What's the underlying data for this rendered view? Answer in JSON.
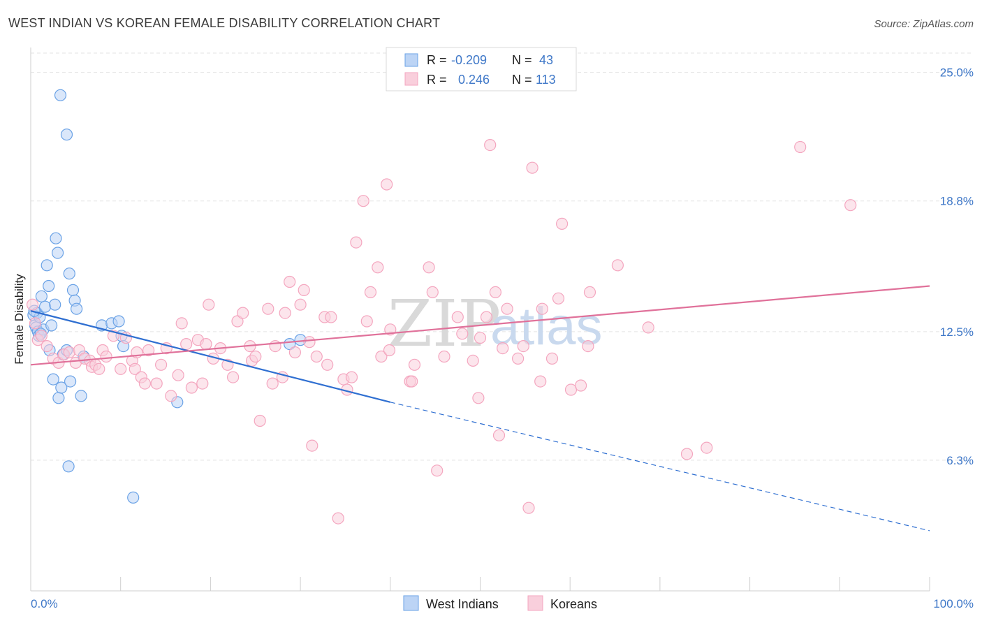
{
  "chart_data": {
    "type": "scatter",
    "title": "WEST INDIAN VS KOREAN FEMALE DISABILITY CORRELATION CHART",
    "source": "Source: ZipAtlas.com",
    "xlabel": "",
    "ylabel": "Female Disability",
    "xlim": [
      0,
      100
    ],
    "ylim": [
      0,
      26.2
    ],
    "x_tick_labels": {
      "left": "0.0%",
      "right": "100.0%"
    },
    "y_ticks": [
      {
        "value": 25.0,
        "label": "25.0%"
      },
      {
        "value": 18.8,
        "label": "18.8%"
      },
      {
        "value": 12.5,
        "label": "12.5%"
      },
      {
        "value": 6.3,
        "label": "6.3%"
      }
    ],
    "watermark": {
      "zip": "ZIP",
      "atlas": "atlas"
    },
    "legend": {
      "r_label": "R =",
      "n_label": "N =",
      "entries": [
        {
          "r": "-0.209",
          "n": "43"
        },
        {
          "r": "0.246",
          "n": "113"
        }
      ]
    },
    "series": [
      {
        "name": "West Indians",
        "color": "#6aa2e6",
        "line_color": "#2f6fd1",
        "trend": {
          "x0": 0,
          "y0": 13.5,
          "x1": 40,
          "y1": 9.1,
          "x_dash_end": 100,
          "y_dash_end": 2.9
        },
        "points": [
          [
            3.3,
            23.9
          ],
          [
            4.0,
            22.0
          ],
          [
            0.3,
            13.3
          ],
          [
            0.5,
            12.8
          ],
          [
            0.6,
            12.7
          ],
          [
            0.7,
            13.4
          ],
          [
            0.8,
            12.5
          ],
          [
            0.9,
            12.3
          ],
          [
            1.0,
            13.2
          ],
          [
            1.2,
            14.2
          ],
          [
            1.4,
            12.6
          ],
          [
            1.6,
            13.7
          ],
          [
            1.8,
            15.7
          ],
          [
            2.0,
            14.7
          ],
          [
            2.1,
            11.6
          ],
          [
            2.3,
            12.8
          ],
          [
            2.5,
            10.2
          ],
          [
            2.7,
            13.8
          ],
          [
            2.8,
            17.0
          ],
          [
            3.0,
            16.3
          ],
          [
            3.1,
            9.3
          ],
          [
            3.4,
            9.8
          ],
          [
            3.6,
            11.4
          ],
          [
            4.0,
            11.6
          ],
          [
            4.2,
            6.0
          ],
          [
            4.3,
            15.3
          ],
          [
            4.4,
            10.1
          ],
          [
            4.7,
            14.5
          ],
          [
            4.9,
            14.0
          ],
          [
            5.1,
            13.6
          ],
          [
            5.6,
            9.4
          ],
          [
            5.9,
            11.3
          ],
          [
            7.9,
            12.8
          ],
          [
            9.0,
            12.9
          ],
          [
            9.8,
            13.0
          ],
          [
            10.1,
            12.3
          ],
          [
            10.3,
            11.8
          ],
          [
            11.4,
            4.5
          ],
          [
            16.3,
            9.1
          ],
          [
            28.8,
            11.9
          ],
          [
            30.0,
            12.1
          ],
          [
            0.4,
            13.5
          ],
          [
            1.1,
            12.4
          ]
        ]
      },
      {
        "name": "Koreans",
        "color": "#f4a6bf",
        "line_color": "#e0719a",
        "trend": {
          "x0": 0,
          "y0": 10.9,
          "x1": 100,
          "y1": 14.7
        },
        "points": [
          [
            0.2,
            13.8
          ],
          [
            0.5,
            12.9
          ],
          [
            0.8,
            12.1
          ],
          [
            1.2,
            12.3
          ],
          [
            1.8,
            11.8
          ],
          [
            2.5,
            11.2
          ],
          [
            3.1,
            11.0
          ],
          [
            3.7,
            11.4
          ],
          [
            4.3,
            11.5
          ],
          [
            5.0,
            11.0
          ],
          [
            5.4,
            11.6
          ],
          [
            6.0,
            11.2
          ],
          [
            6.6,
            11.1
          ],
          [
            6.8,
            10.8
          ],
          [
            7.2,
            10.9
          ],
          [
            7.6,
            10.7
          ],
          [
            8.0,
            11.6
          ],
          [
            8.4,
            11.3
          ],
          [
            9.2,
            12.3
          ],
          [
            10.0,
            10.7
          ],
          [
            10.6,
            12.2
          ],
          [
            11.3,
            11.1
          ],
          [
            11.6,
            10.7
          ],
          [
            11.8,
            11.5
          ],
          [
            12.3,
            10.3
          ],
          [
            12.7,
            10.0
          ],
          [
            13.1,
            11.6
          ],
          [
            14.0,
            10.0
          ],
          [
            14.5,
            10.9
          ],
          [
            15.1,
            11.7
          ],
          [
            15.6,
            9.4
          ],
          [
            16.4,
            10.4
          ],
          [
            16.8,
            12.9
          ],
          [
            17.3,
            11.9
          ],
          [
            17.9,
            9.8
          ],
          [
            18.6,
            12.1
          ],
          [
            19.1,
            10.0
          ],
          [
            19.5,
            11.9
          ],
          [
            19.8,
            13.8
          ],
          [
            20.3,
            11.2
          ],
          [
            21.1,
            11.7
          ],
          [
            21.9,
            10.9
          ],
          [
            22.5,
            10.3
          ],
          [
            23.0,
            13.0
          ],
          [
            23.6,
            13.4
          ],
          [
            24.4,
            11.8
          ],
          [
            24.6,
            11.1
          ],
          [
            25.0,
            11.3
          ],
          [
            25.5,
            8.2
          ],
          [
            26.4,
            13.6
          ],
          [
            26.9,
            10.0
          ],
          [
            27.2,
            11.8
          ],
          [
            28.0,
            10.3
          ],
          [
            28.3,
            13.4
          ],
          [
            28.8,
            14.9
          ],
          [
            29.4,
            11.5
          ],
          [
            30.0,
            13.8
          ],
          [
            30.4,
            14.5
          ],
          [
            31.0,
            12.0
          ],
          [
            31.3,
            7.0
          ],
          [
            31.8,
            11.3
          ],
          [
            32.7,
            13.2
          ],
          [
            33.0,
            10.9
          ],
          [
            33.4,
            13.2
          ],
          [
            34.2,
            3.5
          ],
          [
            34.8,
            10.2
          ],
          [
            35.2,
            9.7
          ],
          [
            35.7,
            10.3
          ],
          [
            36.2,
            16.8
          ],
          [
            37.0,
            18.8
          ],
          [
            37.4,
            13.0
          ],
          [
            37.8,
            14.4
          ],
          [
            38.6,
            15.6
          ],
          [
            39.0,
            11.3
          ],
          [
            39.6,
            19.6
          ],
          [
            39.9,
            11.6
          ],
          [
            40.0,
            12.6
          ],
          [
            42.2,
            10.1
          ],
          [
            42.4,
            10.1
          ],
          [
            42.7,
            10.9
          ],
          [
            44.3,
            15.6
          ],
          [
            44.7,
            14.4
          ],
          [
            45.2,
            5.8
          ],
          [
            46.0,
            11.3
          ],
          [
            47.5,
            13.2
          ],
          [
            48.0,
            12.4
          ],
          [
            49.2,
            11.1
          ],
          [
            49.8,
            9.3
          ],
          [
            50.0,
            12.2
          ],
          [
            50.7,
            13.2
          ],
          [
            51.1,
            21.5
          ],
          [
            51.7,
            14.4
          ],
          [
            52.1,
            7.5
          ],
          [
            52.5,
            11.7
          ],
          [
            53.0,
            13.6
          ],
          [
            54.2,
            11.2
          ],
          [
            54.8,
            11.8
          ],
          [
            55.8,
            20.4
          ],
          [
            56.7,
            10.1
          ],
          [
            56.9,
            13.6
          ],
          [
            58.0,
            11.2
          ],
          [
            58.7,
            14.1
          ],
          [
            59.1,
            17.7
          ],
          [
            60.1,
            9.7
          ],
          [
            61.2,
            9.9
          ],
          [
            62.0,
            11.8
          ],
          [
            62.2,
            14.4
          ],
          [
            65.3,
            15.7
          ],
          [
            68.7,
            12.7
          ],
          [
            73.0,
            6.6
          ],
          [
            75.2,
            6.9
          ],
          [
            85.6,
            21.4
          ],
          [
            91.2,
            18.6
          ],
          [
            55.4,
            4.0
          ]
        ]
      }
    ]
  },
  "bottom_legend": [
    "West Indians",
    "Koreans"
  ]
}
